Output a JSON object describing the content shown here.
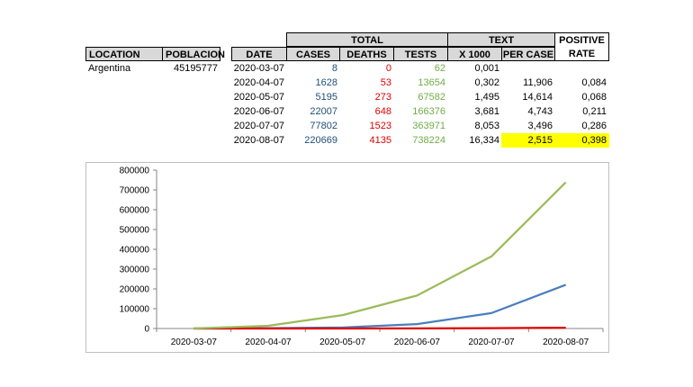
{
  "location_table": {
    "headers": [
      "LOCATION",
      "POBLACION"
    ],
    "row": [
      "Argentina",
      "45195777"
    ]
  },
  "data_table": {
    "group_headers": {
      "total": "TOTAL",
      "text": "TEXT",
      "positive": "POSITIVE"
    },
    "headers": [
      "DATE",
      "CASES",
      "DEATHS",
      "TESTS",
      "X 1000",
      "PER CASE",
      "RATE"
    ],
    "rows": [
      {
        "date": "2020-03-07",
        "cases": "8",
        "deaths": "0",
        "tests": "62",
        "x1000": "0,001",
        "per_case": "",
        "rate": ""
      },
      {
        "date": "2020-04-07",
        "cases": "1628",
        "deaths": "53",
        "tests": "13654",
        "x1000": "0,302",
        "per_case": "11,906",
        "rate": "0,084"
      },
      {
        "date": "2020-05-07",
        "cases": "5195",
        "deaths": "273",
        "tests": "67582",
        "x1000": "1,495",
        "per_case": "14,614",
        "rate": "0,068"
      },
      {
        "date": "2020-06-07",
        "cases": "22007",
        "deaths": "648",
        "tests": "166376",
        "x1000": "3,681",
        "per_case": "4,743",
        "rate": "0,211"
      },
      {
        "date": "2020-07-07",
        "cases": "77802",
        "deaths": "1523",
        "tests": "363971",
        "x1000": "8,053",
        "per_case": "3,496",
        "rate": "0,286"
      },
      {
        "date": "2020-08-07",
        "cases": "220669",
        "deaths": "4135",
        "tests": "738224",
        "x1000": "16,334",
        "per_case": "2,515",
        "rate": "0,398"
      }
    ],
    "highlight_color": "#ffff00"
  },
  "chart_data": {
    "type": "line",
    "categories": [
      "2020-03-07",
      "2020-04-07",
      "2020-05-07",
      "2020-06-07",
      "2020-07-07",
      "2020-08-07"
    ],
    "series": [
      {
        "values": [
          8,
          1628,
          5195,
          22007,
          77802,
          220669
        ],
        "color": "#4a7ebb"
      },
      {
        "values": [
          0,
          53,
          273,
          648,
          1523,
          4135
        ],
        "color": "#e00000"
      },
      {
        "values": [
          62,
          13654,
          67582,
          166376,
          363971,
          738224
        ],
        "color": "#9bbb59"
      }
    ],
    "ylim": [
      0,
      800000
    ],
    "yticks": [
      "800000",
      "700000",
      "600000",
      "500000",
      "400000",
      "300000",
      "200000",
      "100000",
      "0"
    ],
    "grid": false,
    "legend": "none",
    "title": "",
    "xlabel": "",
    "ylabel": ""
  }
}
